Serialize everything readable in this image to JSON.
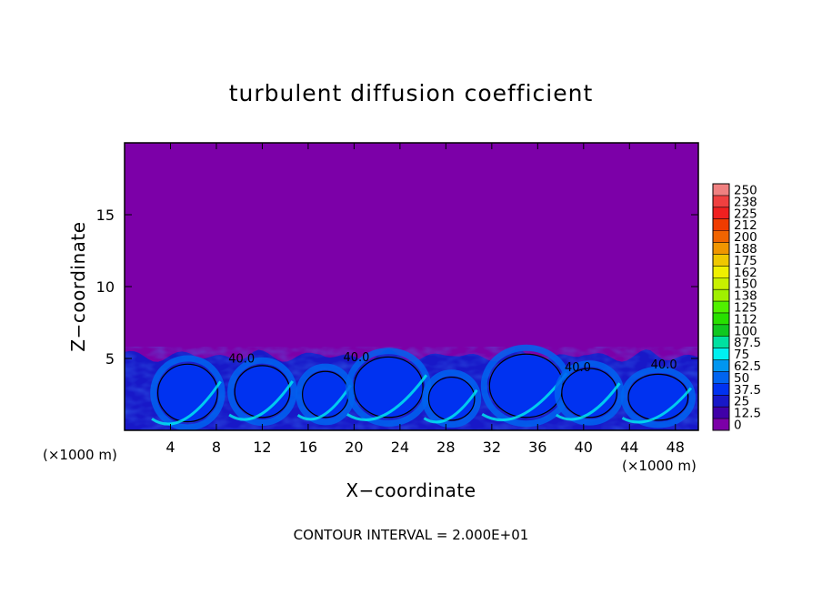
{
  "chart_data": {
    "type": "heatmap",
    "title": "turbulent diffusion coefficient",
    "xlabel": "X−coordinate",
    "ylabel": "Z−coordinate",
    "x_unit": "(×1000 m)",
    "y_unit": "(×1000 m)",
    "xlim": [
      0,
      50
    ],
    "ylim": [
      0,
      20
    ],
    "x_ticks": [
      4,
      8,
      12,
      16,
      20,
      24,
      28,
      32,
      36,
      40,
      44,
      48
    ],
    "y_ticks": [
      5,
      10,
      15
    ],
    "colorbar": {
      "levels": [
        "250",
        "238",
        "225",
        "212",
        "200",
        "188",
        "175",
        "162",
        "150",
        "138",
        "125",
        "112",
        "100",
        "87.5",
        "75",
        "62.5",
        "50",
        "37.5",
        "25",
        "12.5",
        "0"
      ],
      "colors": [
        "#f08080",
        "#f04040",
        "#f02020",
        "#f03c00",
        "#f06400",
        "#f09600",
        "#f0c800",
        "#f0f000",
        "#c8f000",
        "#a0f000",
        "#50f000",
        "#28e000",
        "#10c820",
        "#00e0a0",
        "#00f0f0",
        "#0096f0",
        "#0064f0",
        "#0032f0",
        "#1818c8",
        "#4000a8",
        "#7c00a8"
      ]
    },
    "contour_labels": [
      {
        "text": "40.0",
        "x": 10.2,
        "z": 4.7
      },
      {
        "text": "40.0",
        "x": 20.2,
        "z": 4.8
      },
      {
        "text": "40.0",
        "x": 39.5,
        "z": 4.1
      },
      {
        "text": "40.0",
        "x": 47.0,
        "z": 4.3
      }
    ],
    "interval_text": "CONTOUR INTERVAL = 2.000E+01",
    "background_value": 0,
    "boundary_layer_top": 5.8
  }
}
